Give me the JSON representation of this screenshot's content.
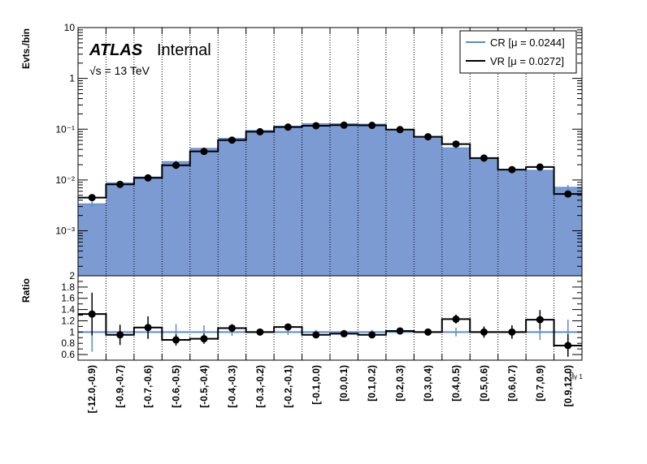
{
  "annotations": {
    "experiment": "ATLAS",
    "status": "Internal",
    "energy": "√s = 13 TeV"
  },
  "chart_data": {
    "type": "bar",
    "categories": [
      "[-12.0,-0.9)",
      "[-0.9,-0.7)",
      "[-0.7,-0.6)",
      "[-0.6,-0.5)",
      "[-0.5,-0.4)",
      "[-0.4,-0.3)",
      "[-0.3,-0.2)",
      "[-0.2,-0.1)",
      "[-0.1,0.0)",
      "[0.0,0.1)",
      "[0.1,0.2)",
      "[0.2,0.3)",
      "[0.3,0.4)",
      "[0.4,0.5)",
      "[0.5,0.6)",
      "[0.6,0.7)",
      "[0.7,0.9)",
      "[0.9,12.0)"
    ],
    "xlabel": "η",
    "xlabel_sub": "γ 1",
    "ylabel": "Evts./bin",
    "yscale": "log",
    "ylim": [
      0.00013,
      10
    ],
    "yticks": [
      {
        "value": 10,
        "label": "10"
      },
      {
        "value": 1,
        "label": "1"
      },
      {
        "value": 0.1,
        "label": "10⁻¹"
      },
      {
        "value": 0.01,
        "label": "10⁻²"
      },
      {
        "value": 0.001,
        "label": "10⁻³"
      }
    ],
    "grid": {
      "x": true,
      "y": false
    },
    "legend_position": "top-right",
    "series": [
      {
        "name": "CR [μ = 0.0244]",
        "style": "filled",
        "color": "#7b9bd2",
        "line_color": "#5b8bc9",
        "values": [
          0.0034,
          0.0088,
          0.0115,
          0.023,
          0.042,
          0.066,
          0.094,
          0.115,
          0.128,
          0.128,
          0.126,
          0.097,
          0.071,
          0.043,
          0.027,
          0.016,
          0.0155,
          0.0072
        ],
        "errors": [
          0.0004,
          0.0006,
          0.0008,
          0.0012,
          0.0018,
          0.0025,
          0.003,
          0.003,
          0.003,
          0.003,
          0.003,
          0.003,
          0.0025,
          0.0018,
          0.0012,
          0.0009,
          0.0009,
          0.0008
        ]
      },
      {
        "name": "VR [μ = 0.0272]",
        "style": "step",
        "color": "#000000",
        "values": [
          0.0045,
          0.0082,
          0.011,
          0.0195,
          0.0365,
          0.061,
          0.089,
          0.11,
          0.117,
          0.12,
          0.119,
          0.098,
          0.071,
          0.051,
          0.027,
          0.016,
          0.018,
          0.0053
        ],
        "errors": [
          0.0006,
          0.0007,
          0.0009,
          0.0013,
          0.002,
          0.0028,
          0.0035,
          0.0038,
          0.004,
          0.004,
          0.004,
          0.0035,
          0.003,
          0.0025,
          0.0018,
          0.0013,
          0.0014,
          0.0008
        ]
      }
    ],
    "ratio": {
      "ylabel": "Ratio",
      "ylim": [
        0.5,
        2.0
      ],
      "yticks": [
        {
          "value": 2,
          "label": "2"
        },
        {
          "value": 1.8,
          "label": "1.8"
        },
        {
          "value": 1.6,
          "label": "1.6"
        },
        {
          "value": 1.4,
          "label": "1.4"
        },
        {
          "value": 1.2,
          "label": "1.2"
        },
        {
          "value": 1.0,
          "label": "1"
        },
        {
          "value": 0.8,
          "label": "0.8"
        },
        {
          "value": 0.6,
          "label": "0.6"
        }
      ],
      "values": [
        1.32,
        0.95,
        1.08,
        0.86,
        0.88,
        1.07,
        1.0,
        1.09,
        0.95,
        0.97,
        0.95,
        1.02,
        1.0,
        1.23,
        1.0,
        1.0,
        1.22,
        0.76
      ],
      "errors": [
        0.38,
        0.18,
        0.2,
        0.1,
        0.09,
        0.07,
        0.05,
        0.06,
        0.05,
        0.05,
        0.05,
        0.05,
        0.05,
        0.08,
        0.1,
        0.12,
        0.17,
        0.2
      ],
      "cr_errors": [
        0.35,
        0.12,
        0.12,
        0.14,
        0.12,
        0.07,
        0.06,
        0.05,
        0.04,
        0.04,
        0.04,
        0.05,
        0.06,
        0.08,
        0.08,
        0.1,
        0.14,
        0.22
      ]
    }
  }
}
